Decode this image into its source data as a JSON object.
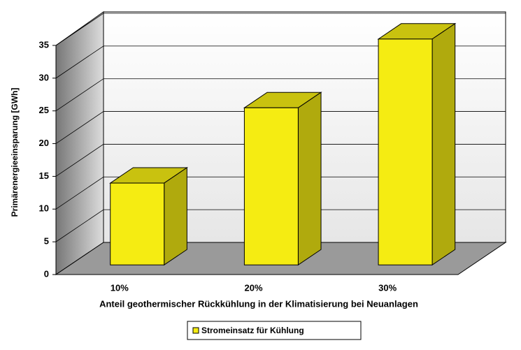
{
  "chart_data": {
    "type": "bar3d",
    "x_label": "Anteil geothermischer Rückkühlung in der Klimatisierung bei Neuanlagen",
    "y_label": "Primärenergieeinsparung [GWh]",
    "categories": [
      "10%",
      "20%",
      "30%"
    ],
    "series": [
      {
        "name": "Stromeinsatz für Kühlung",
        "color": "#f5ec12",
        "values": [
          12.5,
          24,
          34.5
        ]
      }
    ],
    "ylim": [
      0,
      35
    ],
    "yticks": [
      0,
      5,
      10,
      15,
      20,
      25,
      30,
      35
    ],
    "grid": true,
    "legend": "bottom"
  }
}
